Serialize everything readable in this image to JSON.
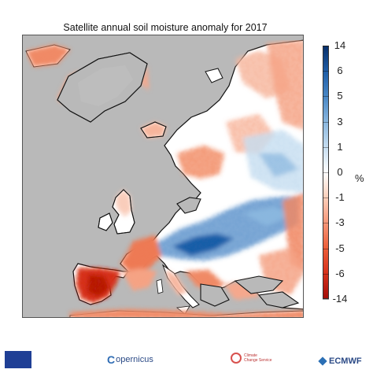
{
  "title": "Satellite annual soil moisture anomaly for 2017",
  "colorbar": {
    "ticks": [
      "14",
      "6",
      "5",
      "3",
      "1",
      "0",
      "-1",
      "-3",
      "-5",
      "-6",
      "-14"
    ],
    "unit": "%",
    "colors": [
      "#08306b",
      "#1f5ea8",
      "#4a88c6",
      "#8ab7df",
      "#c6ddf0",
      "#ffffff",
      "#fcd0bb",
      "#f7987a",
      "#ec5f3a",
      "#d6321c",
      "#a50f0a"
    ]
  },
  "map": {
    "ocean_color": "#b9b9b9",
    "region": "Europe"
  },
  "logos": {
    "copernicus": "opernicus",
    "c3s_line1": "Climate",
    "c3s_line2": "Change Service",
    "ecmwf": "ECMWF"
  }
}
